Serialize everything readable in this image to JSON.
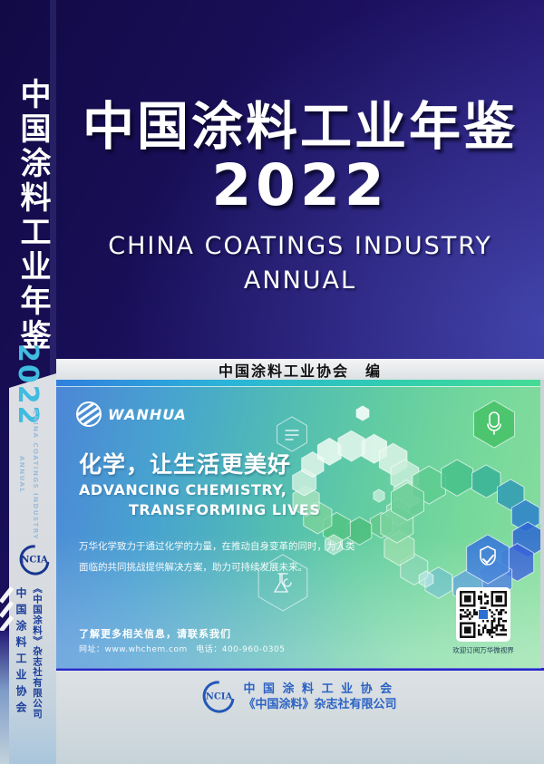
{
  "spine": {
    "title": "中国涂料工业年鉴",
    "year": "2022",
    "english_line1": "CHINA COATINGS INDUSTRY",
    "english_line2": "ANNUAL",
    "logo_text": "NCIA",
    "publisher_association": "中国涂料工业协会",
    "publisher_company": "《中国涂料》杂志社有限公司"
  },
  "cover": {
    "title": "中国涂料工业年鉴",
    "year": "2022",
    "subtitle_line1": "CHINA COATINGS INDUSTRY",
    "subtitle_line2": "ANNUAL",
    "editor_line": "中国涂料工业协会　编"
  },
  "ad": {
    "brand": "WANHUA",
    "headline_cn": "化学，让生活更美好",
    "headline_en_line1": "ADVANCING CHEMISTRY,",
    "headline_en_line2": "TRANSFORMING LIVES",
    "body_line1": "万华化学致力于通过化学的力量，在推动自身变革的同时，为人类",
    "body_line2": "面临的共同挑战提供解决方案，助力可持续发展未来。",
    "contact_line1": "了解更多相关信息，请联系我们",
    "contact_line2": "网址：www.whchem.com　电话：400-960-0305",
    "qr_caption": "欢迎订阅万华微视界"
  },
  "footer": {
    "logo_text": "NCIA",
    "line1": "中 国 涂 料 工 业 协 会",
    "line2": "《中国涂料》杂志社有限公司"
  },
  "colors": {
    "cover_navy": "#1a0f5a",
    "spine_year_cyan": "#3fbcdf",
    "spine_text_blue": "#1c3f9a",
    "accent_teal": "#2fcdb0",
    "ad_blue": "#4c86d6",
    "ad_green": "#88de9e",
    "divider_blue": "#2328c6",
    "footer_text_blue": "#2b62c4"
  }
}
